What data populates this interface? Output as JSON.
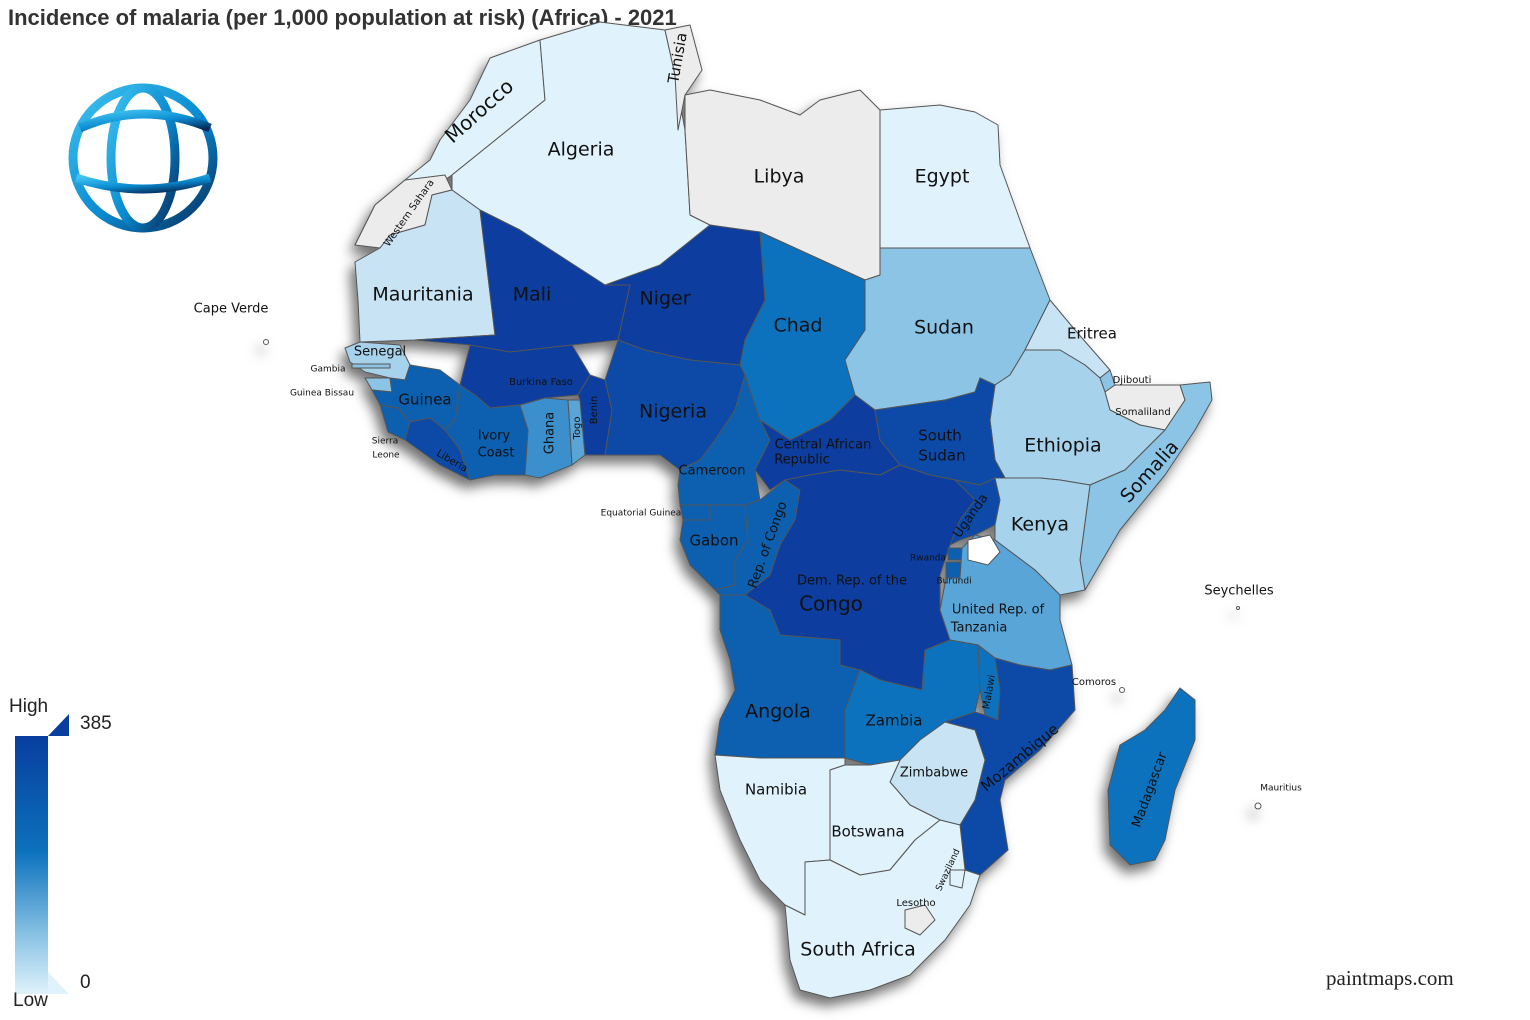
{
  "title": "Incidence of malaria (per 1,000 population at risk) (Africa) - 2021",
  "credit": "paintmaps.com",
  "logo": {
    "icon": "world-bank-globe-icon"
  },
  "legend": {
    "high_label": "High",
    "low_label": "Low",
    "max_value": "385",
    "min_value": "0",
    "colors": {
      "high": "#083e9e",
      "mid": "#0c72bd",
      "low": "#e0f2fb",
      "no_data": "#ececec"
    }
  },
  "countries": {
    "morocco": "Morocco",
    "algeria": "Algeria",
    "tunisia": "Tunisia",
    "libya": "Libya",
    "egypt": "Egypt",
    "western_sahara": "Western Sahara",
    "mauritania": "Mauritania",
    "mali": "Mali",
    "niger": "Niger",
    "chad": "Chad",
    "sudan": "Sudan",
    "eritrea": "Eritrea",
    "djibouti": "Djibouti",
    "somaliland": "Somaliland",
    "ethiopia": "Ethiopia",
    "somalia": "Somalia",
    "south_sudan_1": "South",
    "south_sudan_2": "Sudan",
    "car_1": "Central African",
    "car_2": "Republic",
    "nigeria": "Nigeria",
    "cameroon": "Cameroon",
    "senegal": "Senegal",
    "gambia": "Gambia",
    "guinea_bissau": "Guinea Bissau",
    "guinea": "Guinea",
    "sierra_leone_1": "Sierra",
    "sierra_leone_2": "Leone",
    "liberia": "Liberia",
    "ivory_coast_1": "Ivory",
    "ivory_coast_2": "Coast",
    "ghana": "Ghana",
    "togo": "Togo",
    "benin": "Benin",
    "burkina_faso": "Burkina Faso",
    "equatorial_guinea": "Equatorial Guinea",
    "gabon": "Gabon",
    "rep_congo": "Rep. of Congo",
    "drc_1": "Dem. Rep. of the",
    "drc_2": "Congo",
    "uganda": "Uganda",
    "kenya": "Kenya",
    "rwanda": "Rwanda",
    "burundi": "Burundi",
    "tanzania_1": "United Rep. of",
    "tanzania_2": "Tanzania",
    "angola": "Angola",
    "zambia": "Zambia",
    "malawi": "Malawi",
    "mozambique": "Mozambique",
    "zimbabwe": "Zimbabwe",
    "namibia": "Namibia",
    "botswana": "Botswana",
    "south_africa": "South Africa",
    "swaziland": "Swaziland",
    "lesotho": "Lesotho",
    "madagascar": "Madagascar",
    "comoros": "Comoros",
    "seychelles": "Seychelles",
    "mauritius": "Mauritius",
    "cape_verde": "Cape Verde"
  }
}
